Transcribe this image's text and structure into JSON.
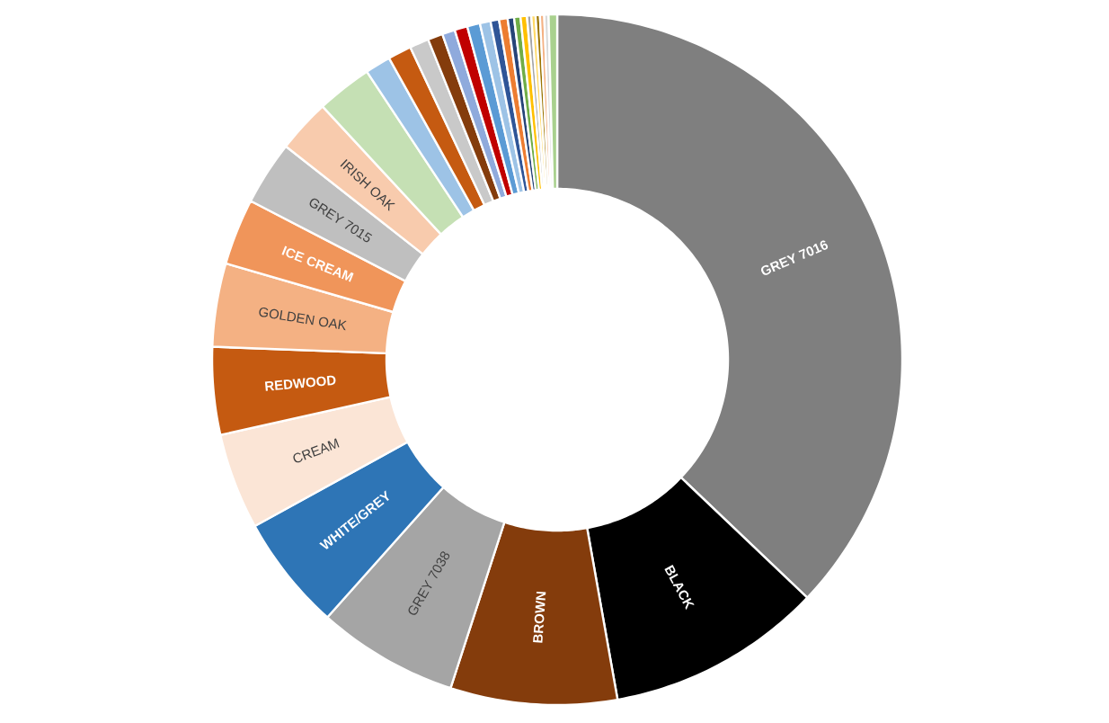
{
  "chart_data": {
    "type": "donut",
    "categories": [
      "GREY 7016",
      "BLACK",
      "BROWN",
      "GREY 7038",
      "WHITE/GREY",
      "CREAM",
      "REDWOOD",
      "GOLDEN OAK",
      "ICE CREAM",
      "GREY 7015",
      "IRISH OAK",
      null,
      null,
      null,
      null,
      null,
      null,
      null,
      null,
      null,
      null,
      null,
      null,
      null,
      null,
      null,
      null,
      null,
      null,
      null,
      null
    ],
    "values": [
      37.1,
      10.1,
      7.8,
      6.6,
      5.4,
      4.5,
      4.1,
      3.9,
      3.1,
      3.0,
      2.5,
      2.6,
      1.2,
      1.1,
      0.9,
      0.7,
      0.6,
      0.6,
      0.6,
      0.5,
      0.4,
      0.4,
      0.3,
      0.3,
      0.3,
      0.2,
      0.2,
      0.2,
      0.2,
      0.2,
      0.4
    ],
    "colors": [
      "#7f7f7f",
      "#000000",
      "#843c0c",
      "#a5a5a5",
      "#2e75b6",
      "#fbe5d6",
      "#c55a11",
      "#f4b183",
      "#f0955a",
      "#bfbfbf",
      "#f8cbad",
      "#c5e0b4",
      "#9dc3e6",
      "#c55a11",
      "#c9c9c9",
      "#843c0c",
      "#8faadc",
      "#c00000",
      "#5b9bd5",
      "#9dc3e6",
      "#2f5597",
      "#ed7d31",
      "#264478",
      "#70ad47",
      "#ffc000",
      "#a5a5a5",
      "#ffd966",
      "#997300",
      "#f4b183",
      "#d9d9d9",
      "#a9d18e"
    ]
  }
}
